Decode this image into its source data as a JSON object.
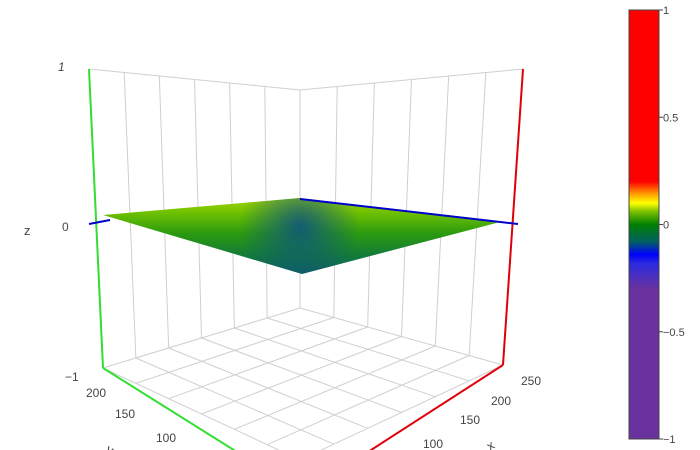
{
  "chart_data": {
    "type": "surface",
    "title": "",
    "axes": {
      "x": {
        "title": "x",
        "ticks": [
          100,
          150,
          200,
          250
        ]
      },
      "y": {
        "title": "y",
        "ticks": [
          100,
          150,
          200
        ]
      },
      "z": {
        "title": "z",
        "range": [
          -1,
          1
        ],
        "ticks": [
          -1,
          0,
          1
        ],
        "tick_labels": [
          "−1",
          "0",
          "1"
        ]
      }
    },
    "surface": {
      "description_values": "near-flat surface around z = 0",
      "corner_z": {
        "top": 0.12,
        "left": 0.05,
        "right": 0.0,
        "bottom": -0.22
      },
      "z_min": -0.22,
      "z_max": 0.12
    },
    "colorscale": [
      {
        "stop": 0.0,
        "color": "#6a329f"
      },
      {
        "stop": 0.35,
        "color": "#6a329f"
      },
      {
        "stop": 0.41,
        "color": "#2a2ae0"
      },
      {
        "stop": 0.43,
        "color": "#0000ff"
      },
      {
        "stop": 0.46,
        "color": "#006060"
      },
      {
        "stop": 0.5,
        "color": "#008000"
      },
      {
        "stop": 0.53,
        "color": "#7bc000"
      },
      {
        "stop": 0.55,
        "color": "#ffff00"
      },
      {
        "stop": 0.57,
        "color": "#ffa500"
      },
      {
        "stop": 0.6,
        "color": "#ff0000"
      },
      {
        "stop": 1.0,
        "color": "#ff0000"
      }
    ],
    "colorbar": {
      "range": [
        -1,
        1
      ],
      "ticks": [
        1,
        0.5,
        0,
        -0.5,
        -1
      ],
      "tick_labels": [
        "1",
        "0.5",
        "0",
        "−0.5",
        "−1"
      ]
    },
    "colors": {
      "x_axis_line": "#e0000a",
      "y_axis_line": "#33dd33",
      "z_zero_line": "#0000cc",
      "grid": "#cfcfcf"
    }
  }
}
